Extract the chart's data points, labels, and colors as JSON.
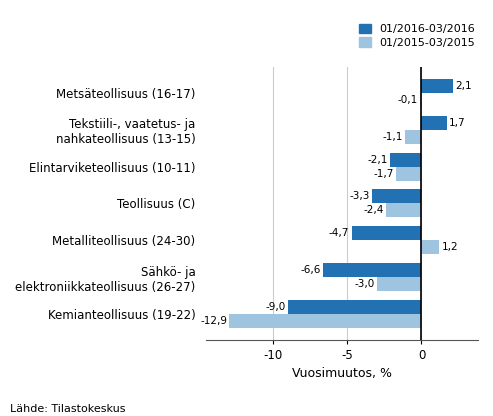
{
  "categories": [
    "Kemianteollisuus (19-22)",
    "Sähkö- ja\nelektroniikkateollisuus (26-27)",
    "Metalliteollisuus (24-30)",
    "Teollisuus (C)",
    "Elintarviketeollisuus (10-11)",
    "Tekstiili-, vaatetus- ja\nnahkateollisuus (13-15)",
    "Metsäteollisuus (16-17)"
  ],
  "series1_label": "01/2016-03/2016",
  "series2_label": "01/2015-03/2015",
  "series1_values": [
    -9.0,
    -6.6,
    -4.7,
    -3.3,
    -2.1,
    1.7,
    2.1
  ],
  "series2_values": [
    -12.9,
    -3.0,
    1.2,
    -2.4,
    -1.7,
    -1.1,
    -0.1
  ],
  "series1_color": "#2271b3",
  "series2_color": "#9ec4e0",
  "bar_height": 0.38,
  "xlim": [
    -14.5,
    3.8
  ],
  "xlabel": "Vuosimuutos, %",
  "xticks": [
    -10,
    -5,
    0
  ],
  "source_text": "Lähde: Tilastokeskus",
  "figsize": [
    4.93,
    4.16
  ],
  "dpi": 100,
  "label_fontsize": 7.5,
  "tick_fontsize": 8.5,
  "xlabel_fontsize": 9.0
}
